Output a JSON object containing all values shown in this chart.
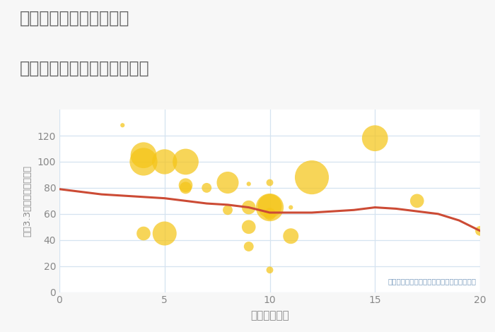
{
  "title_line1": "三重県四日市市山城町の",
  "title_line2": "駅距離別中古マンション価格",
  "xlabel": "駅距離（分）",
  "ylabel": "坪（3.3㎡）単価（万円）",
  "annotation": "円の大きさは、取引のあった物件面積を示す",
  "background_color": "#f7f7f7",
  "plot_bg_color": "#ffffff",
  "scatter_color": "#f5c518",
  "scatter_alpha": 0.72,
  "line_color": "#cc4b35",
  "line_width": 2.2,
  "xlim": [
    0,
    20
  ],
  "ylim": [
    0,
    140
  ],
  "yticks": [
    0,
    20,
    40,
    60,
    80,
    100,
    120
  ],
  "xticks": [
    0,
    5,
    10,
    15,
    20
  ],
  "grid_color": "#d5e3f0",
  "title_color": "#666666",
  "tick_color": "#888888",
  "annotation_color": "#7a9cbf",
  "scatter_x": [
    3,
    4,
    4,
    4,
    5,
    5,
    6,
    6,
    6,
    7,
    8,
    8,
    9,
    9,
    9,
    9,
    10,
    10,
    10,
    10,
    10,
    11,
    11,
    12,
    15,
    17,
    20
  ],
  "scatter_y": [
    128,
    105,
    45,
    100,
    100,
    45,
    82,
    80,
    100,
    80,
    84,
    63,
    65,
    50,
    35,
    83,
    17,
    65,
    66,
    84,
    60,
    65,
    43,
    88,
    118,
    70,
    47
  ],
  "scatter_s": [
    20,
    700,
    200,
    800,
    650,
    600,
    200,
    150,
    700,
    100,
    500,
    100,
    200,
    200,
    100,
    20,
    50,
    800,
    600,
    50,
    150,
    20,
    250,
    1200,
    700,
    200,
    100
  ],
  "trend_x": [
    0,
    1,
    2,
    3,
    4,
    5,
    6,
    7,
    8,
    9,
    10,
    11,
    12,
    13,
    14,
    15,
    16,
    17,
    18,
    19,
    20
  ],
  "trend_y": [
    79,
    77,
    75,
    74,
    73,
    72,
    70,
    68,
    67,
    65,
    61,
    61,
    61,
    62,
    63,
    65,
    64,
    62,
    60,
    55,
    47
  ]
}
